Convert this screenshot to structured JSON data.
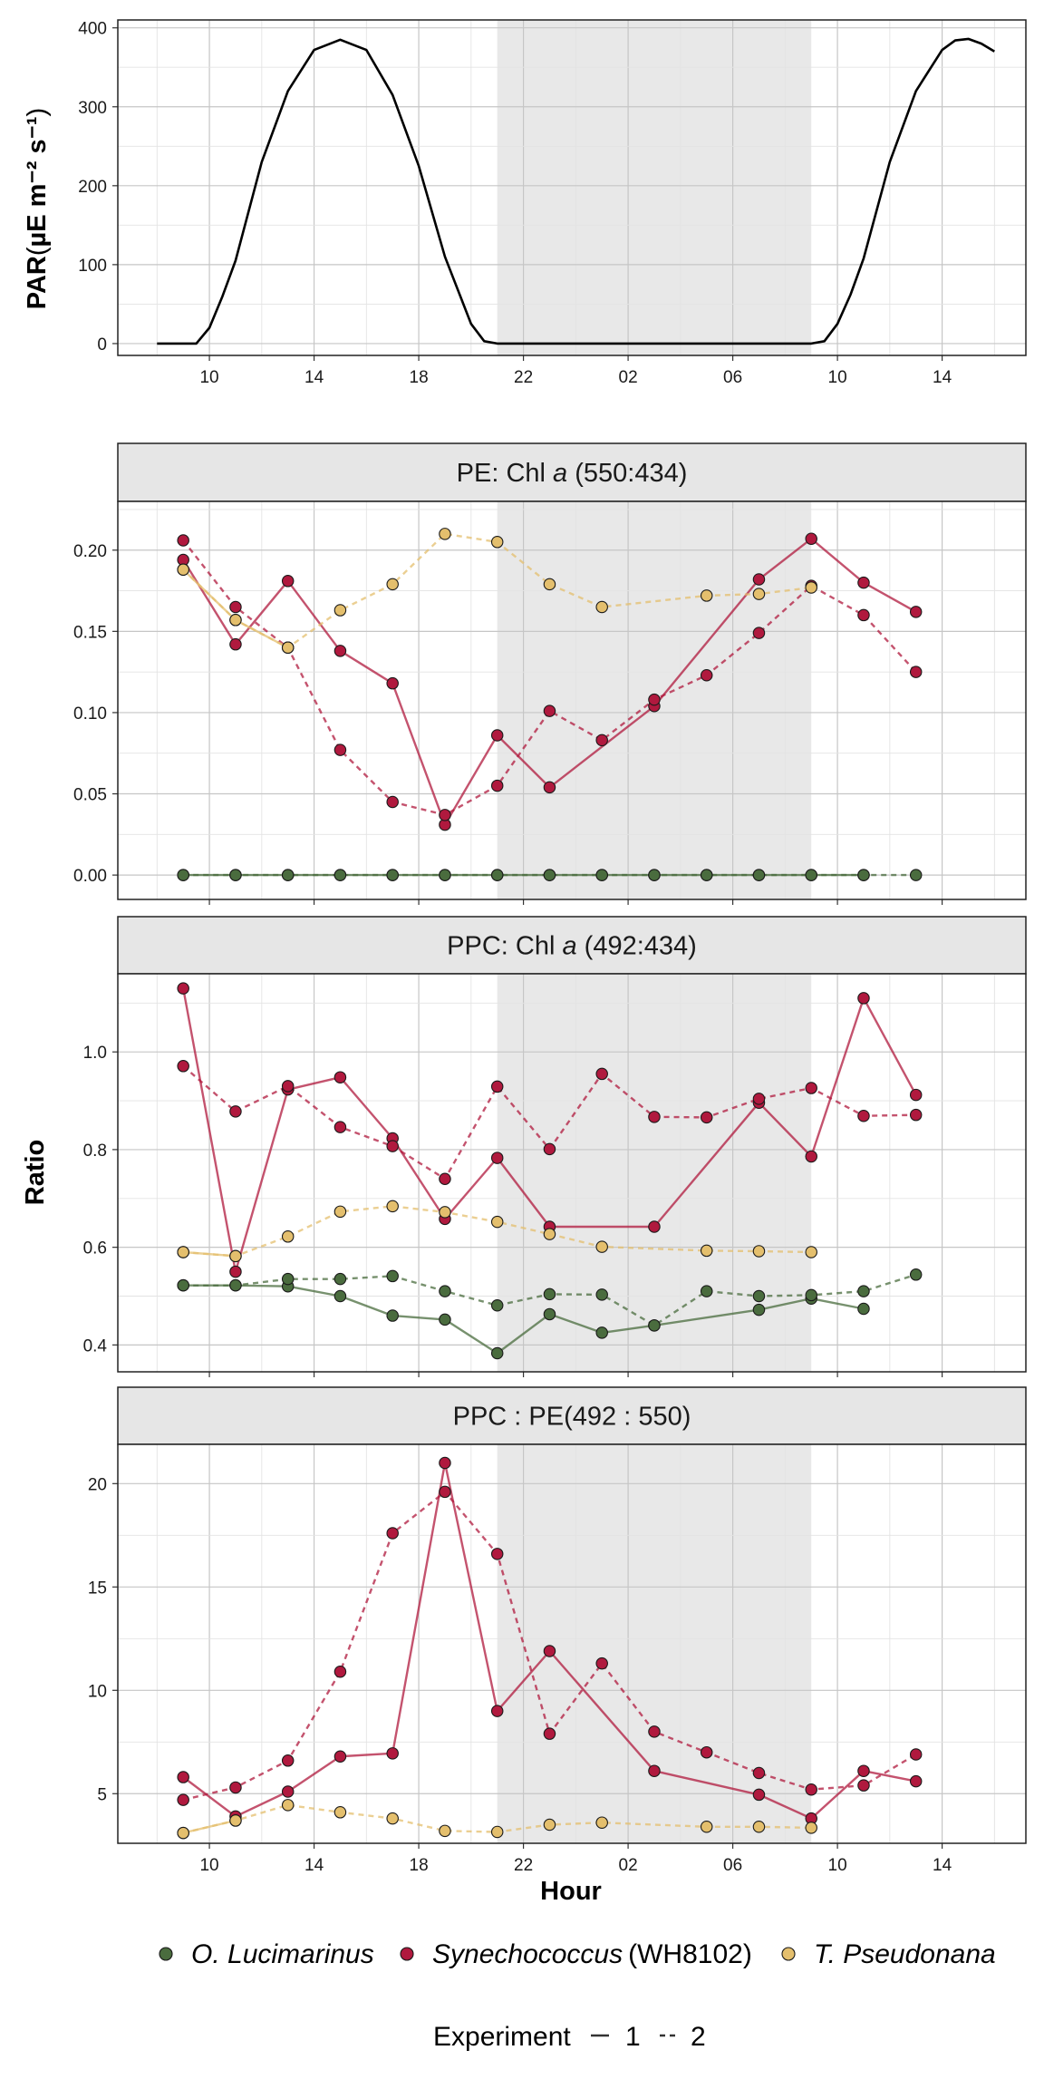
{
  "colors": {
    "O. Lucimarinus": "#4a6c3e",
    "Synechococcus": "#b0193e",
    "T. Pseudonana": "#e4bf6d",
    "par_line": "#000000",
    "shade": "#e8e8e8"
  },
  "night_shading": {
    "from_hour": 21,
    "to_hour": 33
  },
  "x_axis": {
    "label": "Hour",
    "range": [
      6.5,
      41.2
    ],
    "tick_hours": [
      10,
      14,
      18,
      22,
      26,
      30,
      34,
      38
    ],
    "tick_labels": [
      "10",
      "14",
      "18",
      "22",
      "02",
      "06",
      "10",
      "14"
    ]
  },
  "y_axis_shared_label": "Ratio",
  "legend": {
    "species": [
      {
        "key": "O. Lucimarinus",
        "italic": "O. Lucimarinus",
        "plain": ""
      },
      {
        "key": "Synechococcus",
        "italic": "Synechococcus",
        "plain": "(WH8102)"
      },
      {
        "key": "T. Pseudonana",
        "italic": "T. Pseudonana",
        "plain": ""
      }
    ],
    "experiment_title": "Experiment",
    "experiment_levels": [
      "1",
      "2"
    ]
  },
  "chart_data": [
    {
      "type": "line",
      "id": "par",
      "ylabel": "PAR",
      "ylabel_units": "µE m⁻² s⁻¹",
      "ylim": [
        -15,
        410
      ],
      "yticks": [
        0,
        100,
        200,
        300,
        400
      ],
      "series": [
        {
          "x": [
            8,
            9.5,
            10,
            10.5,
            11,
            12,
            13,
            14,
            15,
            16,
            17,
            18,
            19,
            20,
            20.5,
            21,
            22,
            26,
            30,
            33,
            33.5,
            34,
            34.5,
            35,
            36,
            37,
            38,
            38.5,
            39,
            39.5,
            40
          ],
          "y": [
            0,
            0,
            20,
            60,
            105,
            230,
            320,
            372,
            385,
            372,
            315,
            225,
            110,
            25,
            3,
            0,
            0,
            0,
            0,
            0,
            3,
            25,
            62,
            108,
            230,
            320,
            372,
            384,
            386,
            380,
            370
          ]
        }
      ]
    },
    {
      "type": "line",
      "id": "pe_chla",
      "title_prefix": "PE: Chl ",
      "title_italic": "a",
      "title_suffix": " (550:434)",
      "ylim": [
        -0.015,
        0.23
      ],
      "yticks": [
        0,
        0.05,
        0.1,
        0.15,
        0.2
      ],
      "ytick_labels": [
        "0.00",
        "0.05",
        "0.10",
        "0.15",
        "0.20"
      ],
      "series": [
        {
          "species": "O. Lucimarinus",
          "experiment": "1",
          "x": [
            9,
            11,
            13,
            15,
            17,
            19,
            21,
            23,
            25,
            27,
            29,
            31,
            33,
            35
          ],
          "y": [
            0,
            0,
            0,
            0,
            0,
            0,
            0,
            0,
            0,
            0,
            0,
            0,
            0,
            0
          ]
        },
        {
          "species": "O. Lucimarinus",
          "experiment": "2",
          "x": [
            9,
            11,
            13,
            15,
            17,
            19,
            21,
            23,
            25,
            27,
            29,
            31,
            33,
            35,
            37
          ],
          "y": [
            0,
            0,
            0,
            0,
            0,
            0,
            0,
            0,
            0,
            0,
            0,
            0,
            0,
            0,
            0
          ]
        },
        {
          "species": "Synechococcus",
          "experiment": "1",
          "x": [
            9,
            11,
            13,
            15,
            17,
            19,
            21,
            23,
            27,
            31,
            33,
            35,
            37
          ],
          "y": [
            0.194,
            0.142,
            0.181,
            0.138,
            0.118,
            0.031,
            0.086,
            0.054,
            0.104,
            0.182,
            0.207,
            0.18,
            0.162
          ]
        },
        {
          "species": "Synechococcus",
          "experiment": "2",
          "x": [
            9,
            11,
            13,
            15,
            17,
            19,
            21,
            23,
            25,
            27,
            29,
            31,
            33,
            35,
            37
          ],
          "y": [
            0.206,
            0.165,
            0.14,
            0.077,
            0.045,
            0.037,
            0.055,
            0.101,
            0.083,
            0.108,
            0.123,
            0.149,
            0.178,
            0.16,
            0.125
          ]
        },
        {
          "species": "T. Pseudonana",
          "experiment": "1",
          "x": [
            9,
            11,
            13
          ],
          "y": [
            0.188,
            0.157,
            0.14
          ]
        },
        {
          "species": "T. Pseudonana",
          "experiment": "2",
          "x": [
            9,
            11,
            13,
            15,
            17,
            19,
            21,
            23,
            25,
            29,
            31,
            33
          ],
          "y": [
            0.188,
            0.157,
            0.14,
            0.163,
            0.179,
            0.21,
            0.205,
            0.179,
            0.165,
            0.172,
            0.173,
            0.177
          ]
        }
      ]
    },
    {
      "type": "line",
      "id": "ppc_chla",
      "title_prefix": "PPC: Chl ",
      "title_italic": "a",
      "title_suffix": " (492:434)",
      "ylim": [
        0.345,
        1.16
      ],
      "yticks": [
        0.4,
        0.6,
        0.8,
        1.0
      ],
      "ytick_labels": [
        "0.4",
        "0.6",
        "0.8",
        "1.0"
      ],
      "series": [
        {
          "species": "O. Lucimarinus",
          "experiment": "1",
          "x": [
            9,
            11,
            13,
            15,
            17,
            19,
            21,
            23,
            25,
            27,
            31,
            33,
            35
          ],
          "y": [
            0.522,
            0.522,
            0.52,
            0.5,
            0.46,
            0.452,
            0.383,
            0.463,
            0.425,
            0.44,
            0.472,
            0.495,
            0.474
          ]
        },
        {
          "species": "O. Lucimarinus",
          "experiment": "2",
          "x": [
            9,
            11,
            13,
            15,
            17,
            19,
            21,
            23,
            25,
            27,
            29,
            31,
            33,
            35,
            37
          ],
          "y": [
            0.522,
            0.522,
            0.535,
            0.535,
            0.541,
            0.51,
            0.481,
            0.504,
            0.503,
            0.44,
            0.51,
            0.5,
            0.502,
            0.51,
            0.544
          ]
        },
        {
          "species": "Synechococcus",
          "experiment": "1",
          "x": [
            9,
            11,
            13,
            15,
            17,
            19,
            21,
            23,
            27,
            31,
            33,
            35,
            37
          ],
          "y": [
            1.13,
            0.55,
            0.923,
            0.948,
            0.823,
            0.658,
            0.783,
            0.642,
            0.642,
            0.896,
            0.786,
            1.11,
            0.912
          ]
        },
        {
          "species": "Synechococcus",
          "experiment": "2",
          "x": [
            9,
            11,
            13,
            15,
            17,
            19,
            21,
            23,
            25,
            27,
            29,
            31,
            33,
            35,
            37
          ],
          "y": [
            0.971,
            0.878,
            0.93,
            0.846,
            0.807,
            0.74,
            0.929,
            0.801,
            0.955,
            0.867,
            0.866,
            0.904,
            0.926,
            0.869,
            0.871
          ]
        },
        {
          "species": "T. Pseudonana",
          "experiment": "1",
          "x": [
            9,
            11
          ],
          "y": [
            0.59,
            0.582
          ]
        },
        {
          "species": "T. Pseudonana",
          "experiment": "2",
          "x": [
            9,
            11,
            13,
            15,
            17,
            19,
            21,
            23,
            25,
            29,
            31,
            33
          ],
          "y": [
            0.59,
            0.582,
            0.622,
            0.673,
            0.684,
            0.672,
            0.652,
            0.627,
            0.601,
            0.593,
            0.592,
            0.59
          ]
        }
      ]
    },
    {
      "type": "line",
      "id": "ppc_pe",
      "title_plain": "PPC : PE(492 : 550)",
      "ylim": [
        2.6,
        21.9
      ],
      "yticks": [
        5,
        10,
        15,
        20
      ],
      "ytick_labels": [
        "5",
        "10",
        "15",
        "20"
      ],
      "series": [
        {
          "species": "Synechococcus",
          "experiment": "1",
          "x": [
            9,
            11,
            13,
            15,
            17,
            19,
            21,
            23,
            27,
            31,
            33,
            35,
            37
          ],
          "y": [
            5.8,
            3.9,
            5.1,
            6.8,
            6.95,
            21.0,
            9.0,
            11.9,
            6.1,
            4.95,
            3.8,
            6.1,
            5.6
          ]
        },
        {
          "species": "Synechococcus",
          "experiment": "2",
          "x": [
            9,
            11,
            13,
            15,
            17,
            19,
            21,
            23,
            25,
            27,
            29,
            31,
            33,
            35,
            37
          ],
          "y": [
            4.7,
            5.3,
            6.6,
            10.9,
            17.6,
            19.6,
            16.6,
            7.9,
            11.3,
            8.0,
            7.0,
            6.0,
            5.2,
            5.4,
            6.9
          ]
        },
        {
          "species": "T. Pseudonana",
          "experiment": "1",
          "x": [
            9,
            11
          ],
          "y": [
            3.1,
            3.7
          ]
        },
        {
          "species": "T. Pseudonana",
          "experiment": "2",
          "x": [
            9,
            11,
            13,
            15,
            17,
            19,
            21,
            23,
            25,
            29,
            31,
            33
          ],
          "y": [
            3.1,
            3.7,
            4.45,
            4.1,
            3.8,
            3.2,
            3.15,
            3.5,
            3.6,
            3.4,
            3.4,
            3.35
          ]
        }
      ]
    }
  ]
}
